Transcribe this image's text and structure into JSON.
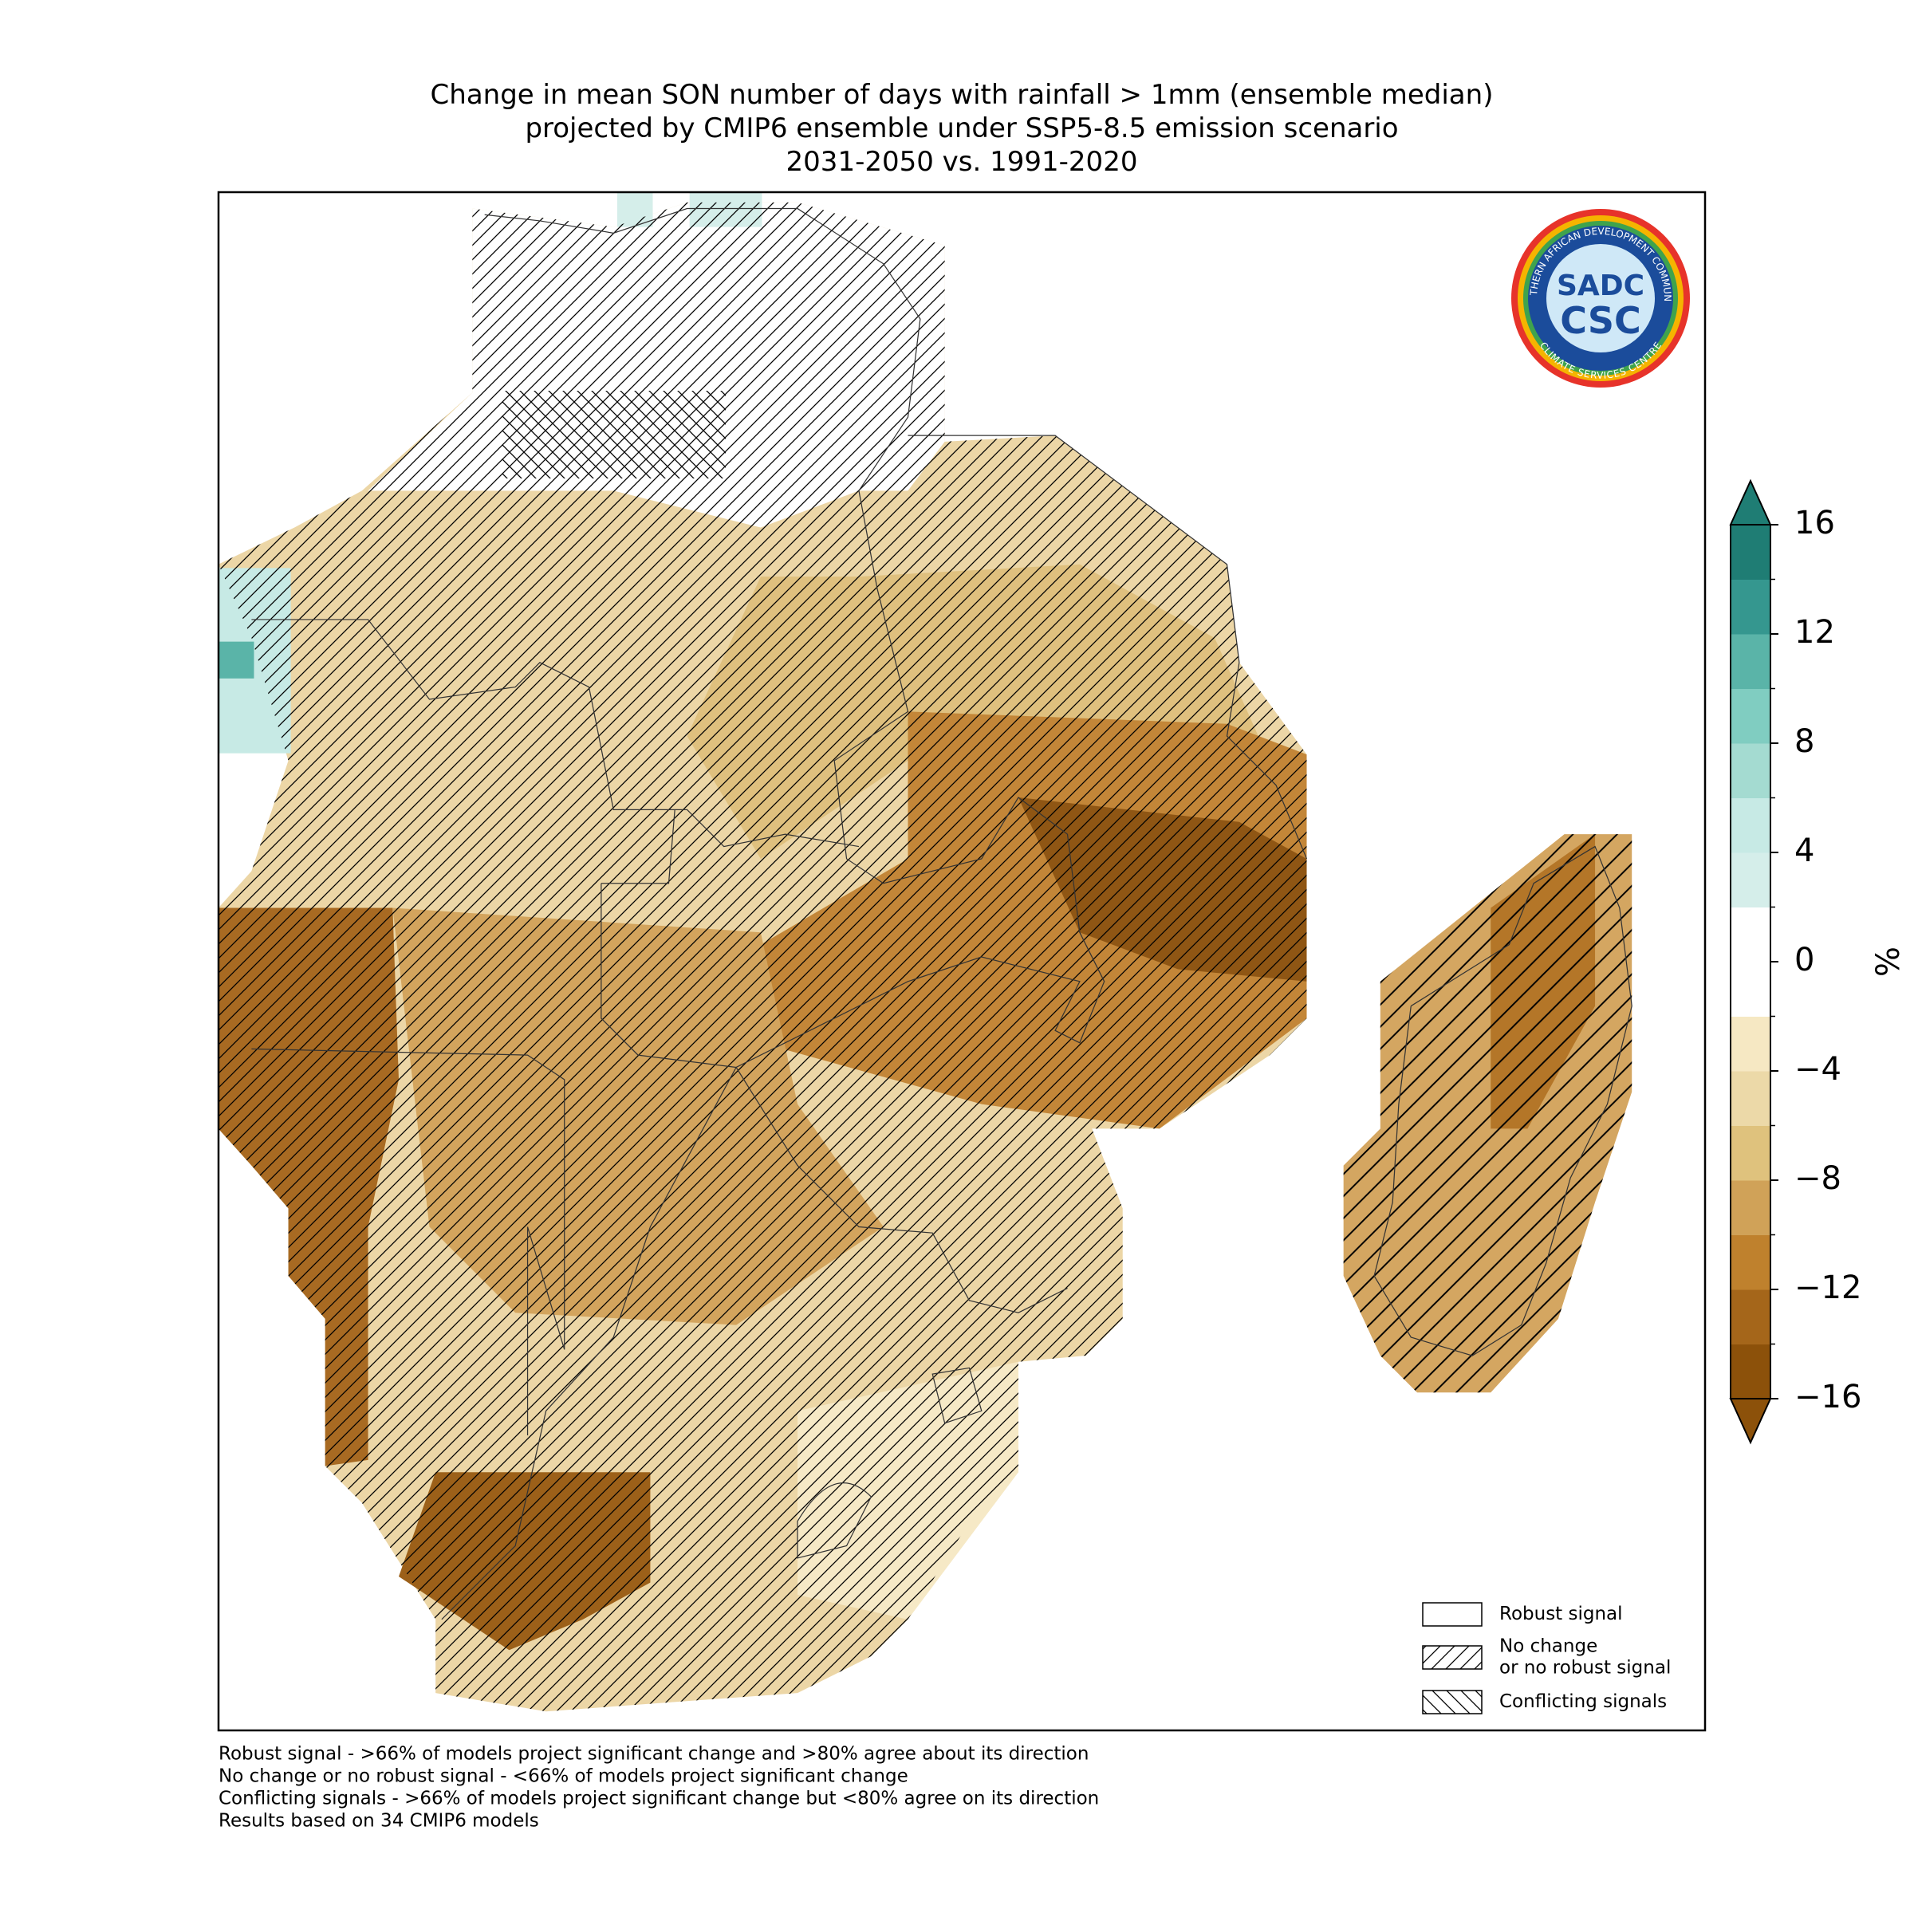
{
  "title": [
    "Change in mean SON number of days with rainfall > 1mm (ensemble median)",
    "projected by CMIP6 ensemble under SSP5-8.5 emission scenario",
    "2031-2050 vs. 1991-2020"
  ],
  "logo": {
    "ring_top": "SOUTHERN AFRICAN DEVELOPMENT COMMUNITY",
    "ring_bottom": "CLIMATE SERVICES CENTRE",
    "upper": "SADC",
    "lower": "CSC"
  },
  "colorbar": {
    "label": "%",
    "lim": [
      -16,
      16
    ],
    "ticks": [
      16,
      12,
      8,
      4,
      0,
      {
        "value": -4,
        "label": "−4"
      },
      {
        "value": -8,
        "label": "−8"
      },
      {
        "value": -12,
        "label": "−12"
      },
      {
        "value": -16,
        "label": "−16"
      }
    ],
    "colors": [
      "#8c510a",
      "#a5661a",
      "#bf812d",
      "#d0a258",
      "#dfc27d",
      "#ecd9a8",
      "#f6e8c3",
      "#ffffff",
      "#ffffff",
      "#d5eeea",
      "#c7eae5",
      "#a4dbd1",
      "#80cdc1",
      "#5ab4a8",
      "#35978f",
      "#1f7d74"
    ],
    "extend": "both"
  },
  "legend": [
    {
      "label": [
        "Robust signal"
      ],
      "hatch": "none"
    },
    {
      "label": [
        "No change",
        "or no robust signal"
      ],
      "hatch": "forward"
    },
    {
      "label": [
        "Conflicting signals"
      ],
      "hatch": "back"
    }
  ],
  "footnotes": [
    "Robust signal - >66% of models project significant change and >80% agree about its direction",
    "No change or no robust signal - <66% of models project significant change",
    "Conflicting signals - >66% of models project significant change but <80% agree on its direction",
    "Results based on 34 CMIP6 models"
  ]
}
